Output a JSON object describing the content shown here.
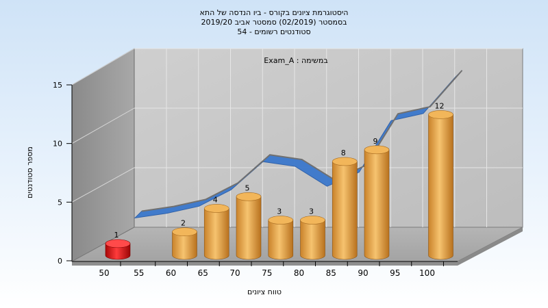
{
  "chart_data": {
    "type": "bar",
    "title_lines": [
      "היסטוגרמת ציונים בקורס - ביו הנדסה של התא",
      "בסמסטר  (02/2019)  סמסטר אביב 2019/20",
      "סטודנטים רשומים - 54"
    ],
    "annotation": "Exam_A : במשימה",
    "xlabel": "טווח ציונים",
    "ylabel": "מספר סטודנטים",
    "x_ticks": [
      "50",
      "55",
      "60",
      "65",
      "70",
      "75",
      "80",
      "85",
      "90",
      "95",
      "100"
    ],
    "y_ticks": [
      0,
      5,
      10,
      15
    ],
    "ylim": [
      0,
      15
    ],
    "bars": [
      {
        "x": 50,
        "value": 1,
        "color": "#e01a1a"
      },
      {
        "x": 60,
        "value": 2,
        "color": "#e0a040"
      },
      {
        "x": 65,
        "value": 4,
        "color": "#e0a040"
      },
      {
        "x": 70,
        "value": 5,
        "color": "#e0a040"
      },
      {
        "x": 75,
        "value": 3,
        "color": "#e0a040"
      },
      {
        "x": 80,
        "value": 3,
        "color": "#e0a040"
      },
      {
        "x": 85,
        "value": 8,
        "color": "#e0a040"
      },
      {
        "x": 90,
        "value": 9,
        "color": "#e0a040"
      },
      {
        "x": 100,
        "value": 12,
        "color": "#e0a040"
      }
    ],
    "trend": [
      {
        "x": 50,
        "value": 2.6
      },
      {
        "x": 55,
        "value": 3.0
      },
      {
        "x": 60,
        "value": 3.6
      },
      {
        "x": 65,
        "value": 5.0
      },
      {
        "x": 70,
        "value": 7.4
      },
      {
        "x": 75,
        "value": 7.0
      },
      {
        "x": 80,
        "value": 5.3
      },
      {
        "x": 85,
        "value": 6.5
      },
      {
        "x": 90,
        "value": 10.9
      },
      {
        "x": 95,
        "value": 11.5
      },
      {
        "x": 100,
        "value": 14.6
      }
    ],
    "grid": true,
    "legend": "none"
  }
}
